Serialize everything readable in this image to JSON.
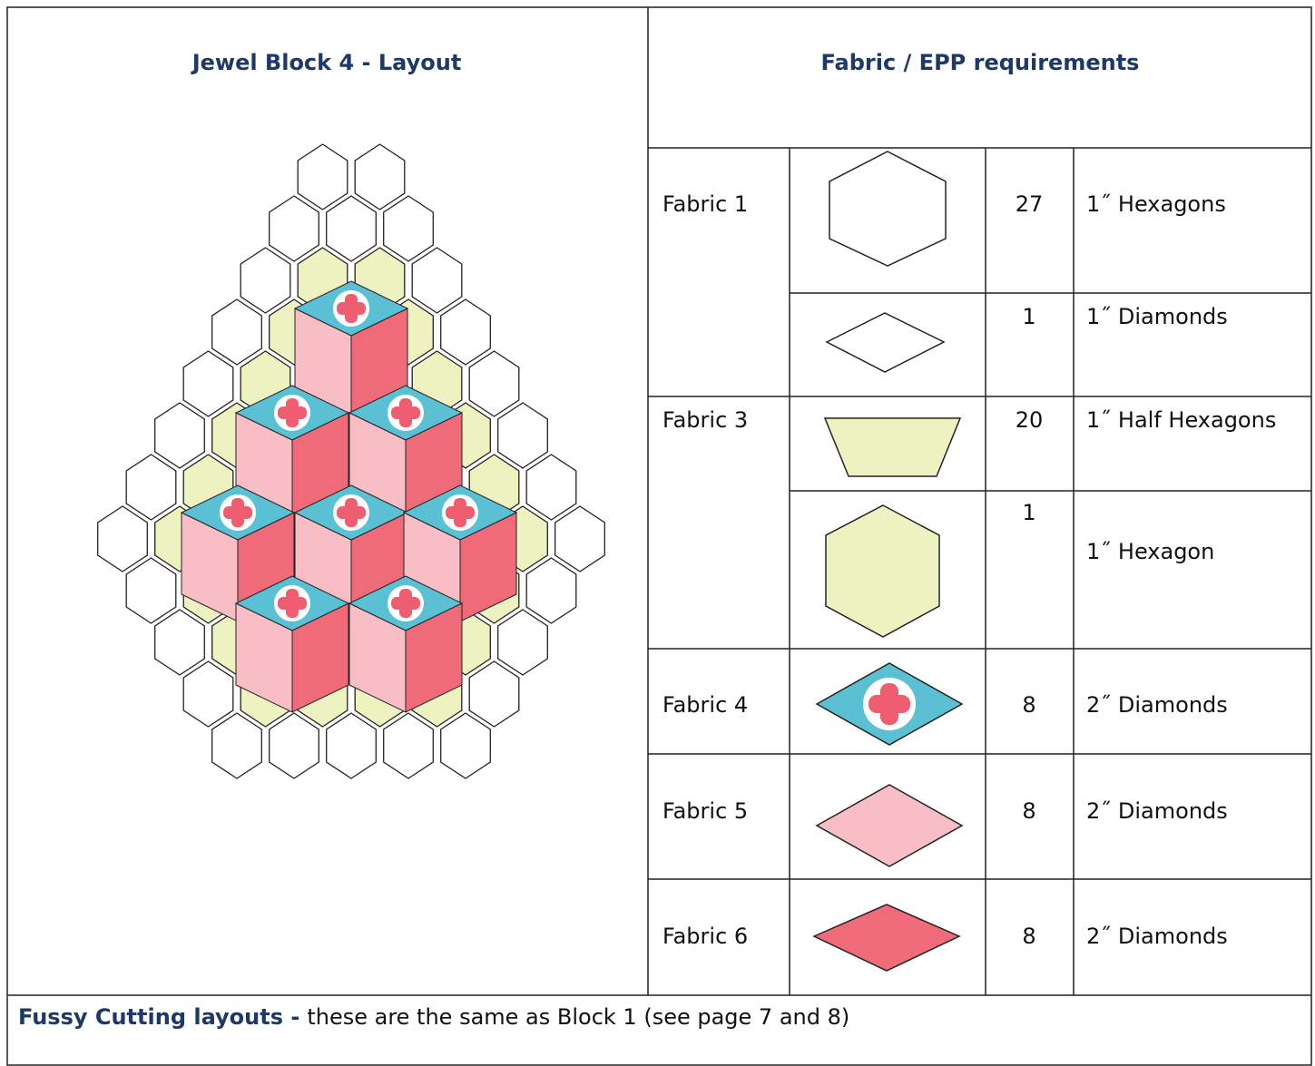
{
  "header": {
    "left_title": "Jewel Block 4 - Layout",
    "right_title": "Fabric  / EPP requirements"
  },
  "table": {
    "rows": [
      {
        "fabric": "Fabric 1",
        "count": 27,
        "shape": "1˝ Hexagons"
      },
      {
        "count": 1,
        "shape": "1˝ Diamonds"
      },
      {
        "fabric": "Fabric 3",
        "count": 20,
        "shape": "1˝ Half Hexagons"
      },
      {
        "count": 1,
        "shape": "1˝ Hexagon"
      },
      {
        "fabric": "Fabric 4",
        "count": 8,
        "shape": "2˝ Diamonds"
      },
      {
        "fabric": "Fabric 5",
        "count": 8,
        "shape": "2˝ Diamonds"
      },
      {
        "fabric": "Fabric 6",
        "count": 8,
        "shape": "2˝ Diamonds"
      }
    ]
  },
  "footer": {
    "bold": "Fussy Cutting layouts  -",
    "note": "these are the same as Block 1 (see page 7 and 8)"
  }
}
